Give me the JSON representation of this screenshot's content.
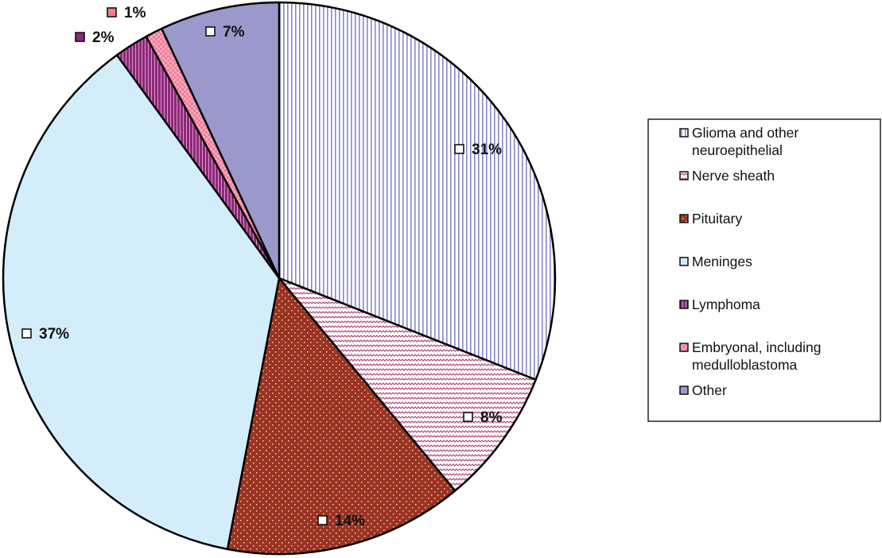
{
  "chart_data": {
    "type": "pie",
    "title": "",
    "start": "top, clockwise",
    "slices": [
      {
        "name": "Glioma and other neuroepithelial",
        "legend_lines": [
          "Glioma and other",
          "neuroepithelial"
        ],
        "value": 31,
        "label": "31%",
        "color": "#8a86c8",
        "pattern": "vertical-lines"
      },
      {
        "name": "Nerve sheath",
        "legend_lines": [
          "Nerve sheath"
        ],
        "value": 8,
        "label": "8%",
        "color": "#b04a7a",
        "pattern": "zigzag"
      },
      {
        "name": "Pituitary",
        "legend_lines": [
          "Pituitary"
        ],
        "value": 14,
        "label": "14%",
        "color": "#9a3322",
        "pattern": "dots"
      },
      {
        "name": "Meninges",
        "legend_lines": [
          "Meninges"
        ],
        "value": 37,
        "label": "37%",
        "color": "#d3eefa",
        "pattern": "solid"
      },
      {
        "name": "Lymphoma",
        "legend_lines": [
          "Lymphoma"
        ],
        "value": 2,
        "label": "2%",
        "color": "#8b2a7a",
        "pattern": "stripes"
      },
      {
        "name": "Embryonal, including medulloblastoma",
        "legend_lines": [
          "Embryonal, including",
          "medulloblastoma"
        ],
        "value": 1,
        "label": "1%",
        "color": "#f07f8f",
        "pattern": "checker"
      },
      {
        "name": "Other",
        "legend_lines": [
          "Other"
        ],
        "value": 7,
        "label": "7%",
        "color": "#9b98cc",
        "pattern": "solid"
      }
    ],
    "legend": {
      "position": "right"
    }
  }
}
